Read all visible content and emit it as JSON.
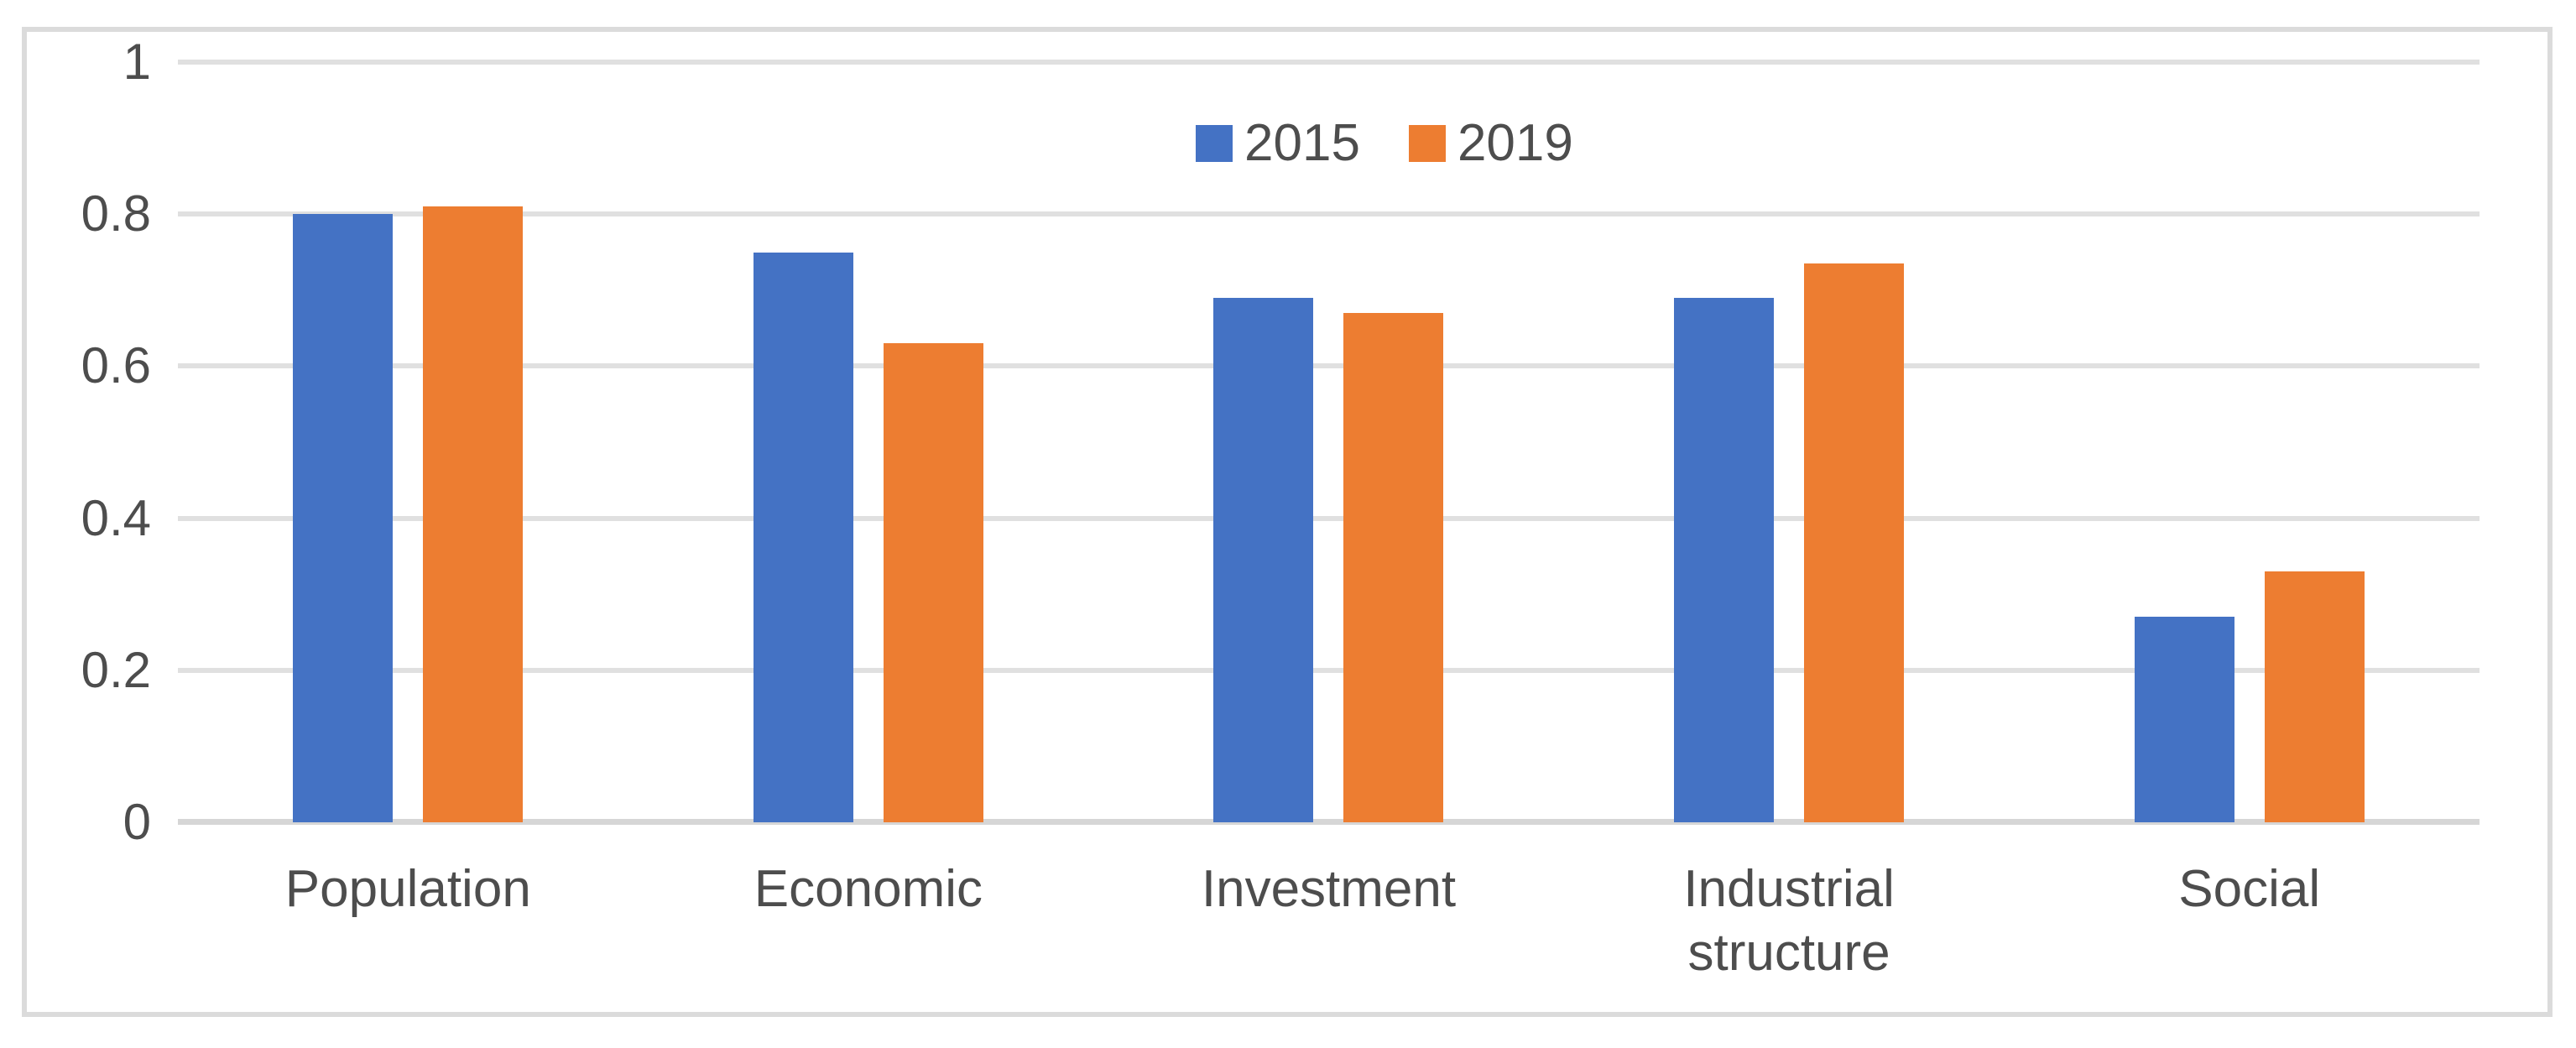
{
  "chart_data": {
    "type": "bar",
    "title": "",
    "xlabel": "",
    "ylabel": "",
    "categories": [
      "Population",
      "Economic",
      "Investment",
      "Industrial structure",
      "Social"
    ],
    "series": [
      {
        "name": "2015",
        "color": "#4472C4",
        "values": [
          0.8,
          0.75,
          0.69,
          0.69,
          0.27
        ]
      },
      {
        "name": "2019",
        "color": "#ED7D31",
        "values": [
          0.81,
          0.63,
          0.67,
          0.735,
          0.33
        ]
      }
    ],
    "ylim": [
      0,
      1
    ],
    "yticks": [
      {
        "value": 0,
        "label": "0"
      },
      {
        "value": 0.2,
        "label": "0.2"
      },
      {
        "value": 0.4,
        "label": "0.4"
      },
      {
        "value": 0.6,
        "label": "0.6"
      },
      {
        "value": 0.8,
        "label": "0.8"
      },
      {
        "value": 1,
        "label": "1"
      }
    ],
    "grid": true,
    "legend_position": "top-center"
  },
  "colors": {
    "frame_border": "#dbdbdb",
    "gridline": "#e0e0e0",
    "axis_line": "#d6d6d6",
    "tick_text": "#4d4d4d",
    "background": "#ffffff",
    "series_2015": "#4472C4",
    "series_2019": "#ED7D31"
  }
}
